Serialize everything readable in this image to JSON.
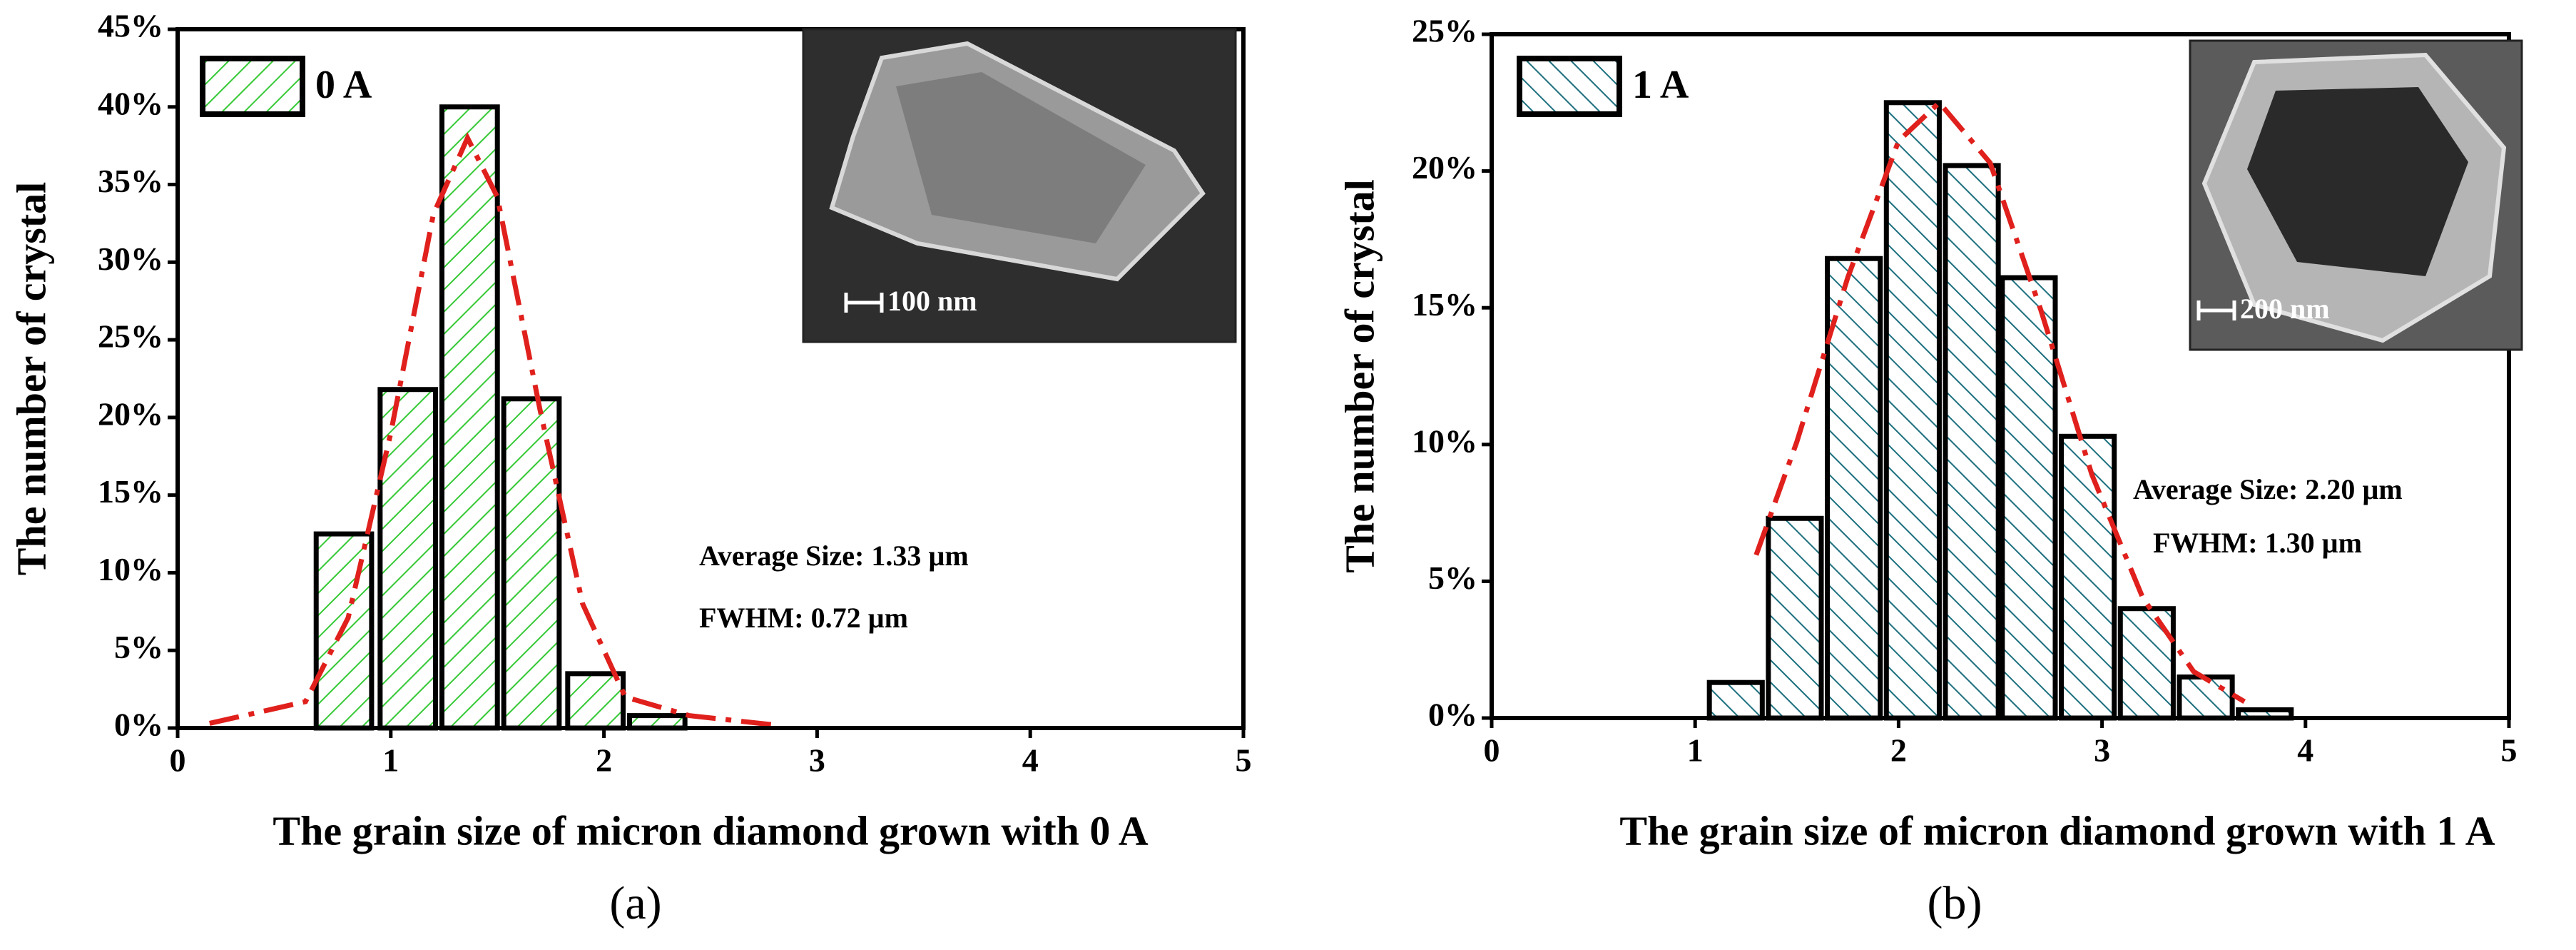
{
  "chart_data": [
    {
      "type": "bar",
      "x": [
        0.78,
        1.08,
        1.37,
        1.66,
        1.96,
        2.25
      ],
      "series": [
        {
          "name": "0 A",
          "color": "#35c935",
          "values": [
            12.5,
            21.8,
            40,
            21.2,
            3.5,
            0.8
          ]
        }
      ],
      "fit": {
        "color": "#e0201c",
        "x": [
          0.15,
          0.6,
          0.8,
          1.0,
          1.2,
          1.36,
          1.5,
          1.7,
          1.9,
          2.1,
          2.4,
          2.8
        ],
        "values": [
          0.3,
          1.7,
          7.1,
          19,
          33.1,
          38,
          34.2,
          20.5,
          8,
          2,
          0.8,
          0.2
        ]
      },
      "xlim": [
        0,
        5
      ],
      "xticks": [
        0,
        1,
        2,
        3,
        4,
        5
      ],
      "ylim": [
        0,
        45
      ],
      "yticks": [
        {
          "value": 0,
          "label": "0%"
        },
        {
          "value": 5,
          "label": "5%"
        },
        {
          "value": 10,
          "label": "10%"
        },
        {
          "value": 15,
          "label": "15%"
        },
        {
          "value": 20,
          "label": "20%"
        },
        {
          "value": 25,
          "label": "25%"
        },
        {
          "value": 30,
          "label": "30%"
        },
        {
          "value": 35,
          "label": "35%"
        },
        {
          "value": 40,
          "label": "40%"
        },
        {
          "value": 45,
          "label": "45%"
        }
      ],
      "x_label": "The grain size of micron diamond grown with 0 A",
      "y_label": "The number of crystal",
      "annotations": [
        "Average Size: 1.33 µm",
        "FWHM: 0.72 µm"
      ],
      "inset_scale": "100 nm",
      "panel_label": "(a)"
    },
    {
      "type": "bar",
      "x": [
        1.2,
        1.49,
        1.78,
        2.07,
        2.36,
        2.64,
        2.93,
        3.22,
        3.51,
        3.8
      ],
      "series": [
        {
          "name": "1 A",
          "color": "#1c6f7e",
          "values": [
            1.3,
            7.3,
            16.8,
            22.5,
            20.2,
            16.1,
            10.3,
            4.0,
            1.5,
            0.3
          ]
        }
      ],
      "fit": {
        "color": "#e0201c",
        "x": [
          1.3,
          1.5,
          1.75,
          2.0,
          2.2,
          2.45,
          2.7,
          2.95,
          3.2,
          3.45,
          3.7
        ],
        "values": [
          5.96,
          10.1,
          16.1,
          21.1,
          22.5,
          20.3,
          14.9,
          8.9,
          4.4,
          1.7,
          0.6
        ]
      },
      "xlim": [
        0,
        5
      ],
      "xticks": [
        0,
        1,
        2,
        3,
        4,
        5
      ],
      "ylim": [
        0,
        25
      ],
      "yticks": [
        {
          "value": 0,
          "label": "0%"
        },
        {
          "value": 5,
          "label": "5%"
        },
        {
          "value": 10,
          "label": "10%"
        },
        {
          "value": 15,
          "label": "15%"
        },
        {
          "value": 20,
          "label": "20%"
        },
        {
          "value": 25,
          "label": "25%"
        }
      ],
      "x_label": "The grain size of micron diamond grown with 1 A",
      "y_label": "The number of crystal",
      "annotations": [
        "Average Size: 2.20 µm",
        "FWHM: 1.30 µm"
      ],
      "inset_scale": "200 nm",
      "panel_label": "(b)"
    }
  ]
}
